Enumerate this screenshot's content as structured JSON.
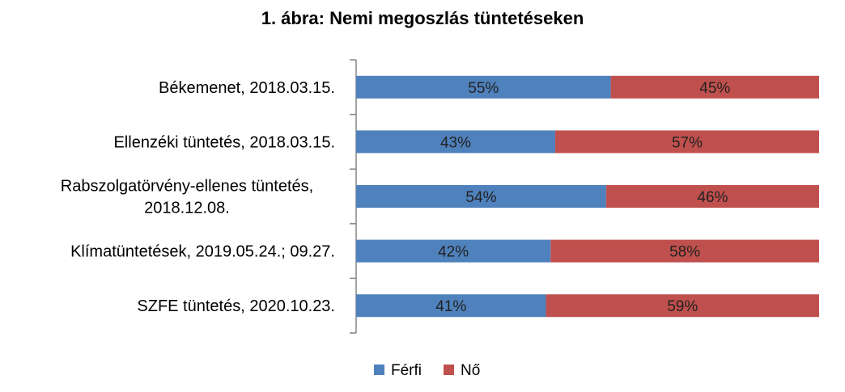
{
  "chart_data": {
    "type": "bar",
    "orientation": "horizontal",
    "stacked": "100%",
    "title": "1. ábra: Nemi megoszlás tüntetéseken",
    "categories": [
      [
        "Békemenet, 2018.03.15."
      ],
      [
        "Ellenzéki tüntetés, 2018.03.15."
      ],
      [
        "Rabszolgatörvény-ellenes tüntetés,",
        "2018.12.08."
      ],
      [
        "Klímatüntetések, 2019.05.24.; 09.27."
      ],
      [
        "SZFE tüntetés, 2020.10.23."
      ]
    ],
    "series": [
      {
        "name": "Férfi",
        "color": "#4F81BD",
        "values": [
          55,
          43,
          54,
          42,
          41
        ],
        "labels": [
          "55%",
          "43%",
          "54%",
          "42%",
          "41%"
        ]
      },
      {
        "name": "Nő",
        "color": "#C0504D",
        "values": [
          45,
          57,
          46,
          58,
          59
        ],
        "labels": [
          "45%",
          "57%",
          "46%",
          "58%",
          "59%"
        ]
      }
    ],
    "xlim": [
      0,
      100
    ],
    "grid": false,
    "legend_position": "bottom"
  }
}
